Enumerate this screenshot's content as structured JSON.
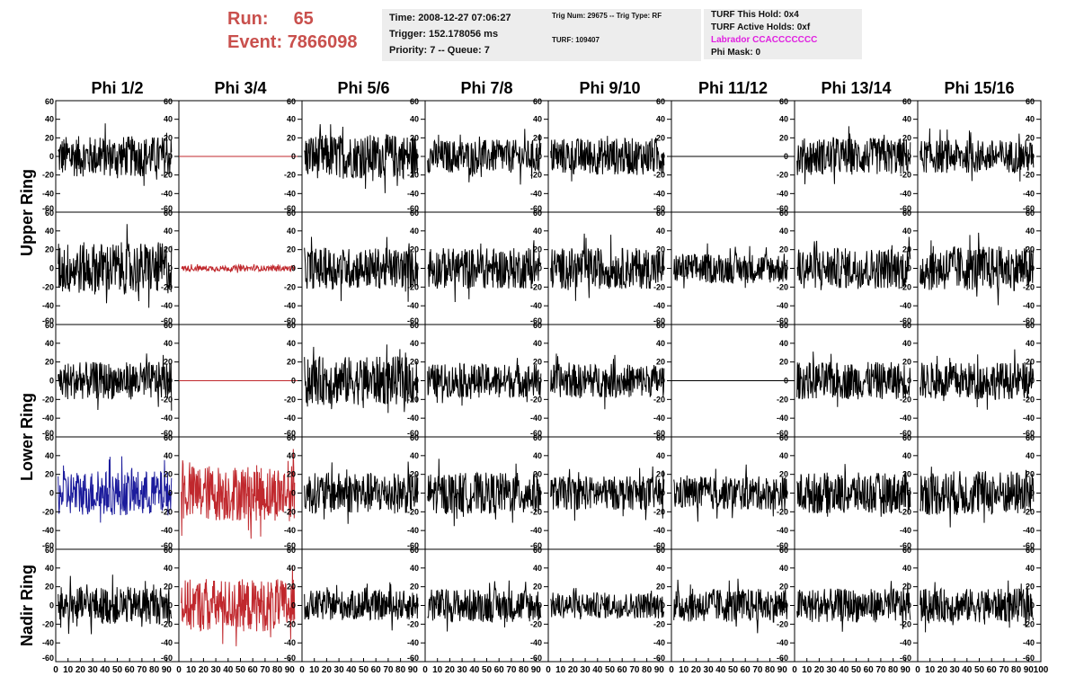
{
  "header": {
    "run_label": "Run:",
    "run_value": "65",
    "event_label": "Event:",
    "event_value": "7866098"
  },
  "time_box": {
    "time": "Time: 2008-12-27 07:06:27",
    "trigger": "Trigger: 152.178056 ms",
    "priority": "Priority: 7 -- Queue: 7"
  },
  "trig_box": {
    "trig_line": "Trig Num: 29675 -- Trig Type: RF",
    "turf_line": "TURF: 109407"
  },
  "turf_box": {
    "this_hold": "TURF This Hold: 0x4",
    "active_holds": "TURF Active Holds: 0xf",
    "labrador": "Labrador CCACCCCCCC",
    "phi_mask": "Phi Mask: 0"
  },
  "colors": {
    "header_red": "#c9504d",
    "labrador_magenta": "#e020e0",
    "trace_black": "#000000",
    "trace_red": "#c0282d",
    "trace_blue": "#1c1c9c",
    "info_bg": "#ededed"
  },
  "chart_data": {
    "type": "line",
    "columns": [
      "Phi 1/2",
      "Phi 3/4",
      "Phi 5/6",
      "Phi 7/8",
      "Phi 9/10",
      "Phi 11/12",
      "Phi 13/14",
      "Phi 15/16"
    ],
    "row_labels": [
      "Upper Ring",
      "Lower Ring",
      "Nadir Ring"
    ],
    "ylim": [
      -60,
      60
    ],
    "xlim": [
      0,
      100
    ],
    "y_ticks": [
      -60,
      -40,
      -20,
      0,
      20,
      40,
      60
    ],
    "y_tick_labels": [
      "-60",
      "-40",
      "-20",
      "0",
      "20",
      "40",
      "60"
    ],
    "x_ticks": [
      0,
      10,
      20,
      30,
      40,
      50,
      60,
      70,
      80,
      90
    ],
    "x_tick_labels": [
      "0",
      "10",
      "20",
      "30",
      "40",
      "50",
      "60",
      "70",
      "80",
      "90"
    ],
    "x_last_label": "100",
    "grid": false,
    "panels": [
      [
        {
          "color": "black",
          "amp": 22
        },
        {
          "color": "red",
          "amp": 0
        },
        {
          "color": "black",
          "amp": 24
        },
        {
          "color": "black",
          "amp": 18
        },
        {
          "color": "black",
          "amp": 20
        },
        {
          "color": "black",
          "amp": 0
        },
        {
          "color": "black",
          "amp": 20
        },
        {
          "color": "black",
          "amp": 18
        }
      ],
      [
        {
          "color": "black",
          "amp": 28
        },
        {
          "color": "red",
          "amp": 3
        },
        {
          "color": "black",
          "amp": 22
        },
        {
          "color": "black",
          "amp": 22
        },
        {
          "color": "black",
          "amp": 22
        },
        {
          "color": "black",
          "amp": 16
        },
        {
          "color": "black",
          "amp": 22
        },
        {
          "color": "black",
          "amp": 24
        }
      ],
      [
        {
          "color": "black",
          "amp": 20
        },
        {
          "color": "red",
          "amp": 0
        },
        {
          "color": "black",
          "amp": 26
        },
        {
          "color": "black",
          "amp": 18
        },
        {
          "color": "black",
          "amp": 18
        },
        {
          "color": "black",
          "amp": 0
        },
        {
          "color": "black",
          "amp": 20
        },
        {
          "color": "black",
          "amp": 20
        }
      ],
      [
        {
          "color": "blue",
          "amp": 24
        },
        {
          "color": "red",
          "amp": 30
        },
        {
          "color": "black",
          "amp": 22
        },
        {
          "color": "black",
          "amp": 22
        },
        {
          "color": "black",
          "amp": 18
        },
        {
          "color": "black",
          "amp": 18
        },
        {
          "color": "black",
          "amp": 22
        },
        {
          "color": "black",
          "amp": 24
        }
      ],
      [
        {
          "color": "black",
          "amp": 20
        },
        {
          "color": "red",
          "amp": 28
        },
        {
          "color": "black",
          "amp": 16
        },
        {
          "color": "black",
          "amp": 18
        },
        {
          "color": "black",
          "amp": 14
        },
        {
          "color": "black",
          "amp": 18
        },
        {
          "color": "black",
          "amp": 18
        },
        {
          "color": "black",
          "amp": 18
        }
      ]
    ]
  }
}
